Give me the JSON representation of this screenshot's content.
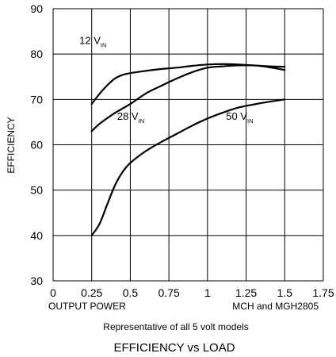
{
  "chart_data": {
    "type": "line",
    "title": "EFFICIENCY vs LOAD",
    "subtitle": "Representative of all 5 volt models",
    "xlabel": "OUTPUT POWER",
    "ylabel": "EFFICIENCY",
    "model_note": "MCH and MGH2805",
    "xlim": [
      0,
      1.75
    ],
    "ylim": [
      30,
      90
    ],
    "x_ticks": [
      "0",
      "0.25",
      "0.5",
      "0.75",
      "1",
      "1.25",
      "1.5",
      "1.75"
    ],
    "x_tick_values": [
      0,
      0.25,
      0.5,
      0.75,
      1,
      1.25,
      1.5,
      1.75
    ],
    "y_ticks": [
      "30",
      "40",
      "50",
      "60",
      "70",
      "80",
      "90"
    ],
    "y_tick_values": [
      30,
      40,
      50,
      60,
      70,
      80,
      90
    ],
    "grid": true,
    "legend": "none",
    "series": [
      {
        "name": "12 V",
        "name_sub": "IN",
        "x": [
          0.25,
          0.3,
          0.35,
          0.4,
          0.45,
          0.5,
          0.6,
          0.7,
          0.8,
          0.9,
          1.0,
          1.1,
          1.2,
          1.3,
          1.4,
          1.5
        ],
        "values": [
          69,
          71.2,
          73.1,
          74.6,
          75.4,
          75.8,
          76.3,
          76.7,
          77.0,
          77.4,
          77.7,
          77.8,
          77.7,
          77.5,
          77.3,
          77.2
        ]
      },
      {
        "name": "28 V",
        "name_sub": "IN",
        "x": [
          0.25,
          0.3,
          0.4,
          0.5,
          0.6,
          0.7,
          0.8,
          0.9,
          1.0,
          1.1,
          1.2,
          1.3,
          1.4,
          1.5
        ],
        "values": [
          63,
          64.6,
          67.0,
          69.0,
          71.3,
          73.0,
          74.6,
          76.0,
          77.0,
          77.3,
          77.5,
          77.5,
          77.1,
          76.5
        ]
      },
      {
        "name": "50 V",
        "name_sub": "IN",
        "x": [
          0.25,
          0.3,
          0.35,
          0.4,
          0.45,
          0.5,
          0.6,
          0.7,
          0.8,
          0.9,
          1.0,
          1.1,
          1.2,
          1.3,
          1.4,
          1.5
        ],
        "values": [
          40,
          42.5,
          46.8,
          51.0,
          54.0,
          56.0,
          58.6,
          60.6,
          62.4,
          64.2,
          65.8,
          67.1,
          68.2,
          68.9,
          69.5,
          70.0
        ]
      }
    ],
    "colors": {
      "line": "#000000",
      "grid": "#000000",
      "background": "#ffffff"
    }
  }
}
